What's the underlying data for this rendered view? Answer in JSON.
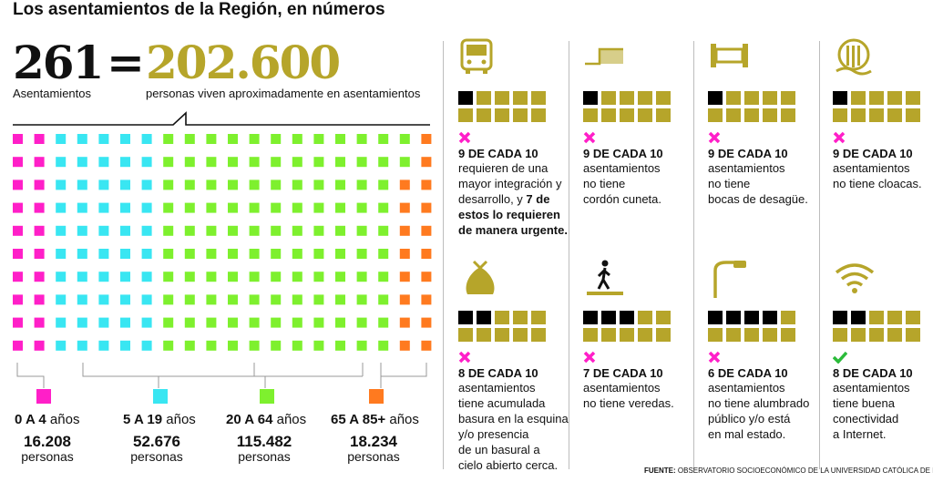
{
  "title": "Los asentamientos de la Región, en números",
  "headline": {
    "count": "261",
    "count_label": "Asentamientos",
    "equals": "=",
    "people": "202.600",
    "people_label": "personas viven aproximadamente en asentamientos"
  },
  "colors": {
    "magenta": "#ff1fc8",
    "cyan": "#39e6f2",
    "green": "#7ef02e",
    "orange": "#ff7a1f",
    "gold": "#b6a52a",
    "black": "#000000"
  },
  "age_groups": [
    {
      "range": "0 A 4",
      "unit": "años",
      "count": "16.208",
      "label": "personas",
      "color": "#ff1fc8"
    },
    {
      "range": "5 A 19",
      "unit": "años",
      "count": "52.676",
      "label": "personas",
      "color": "#39e6f2"
    },
    {
      "range": "20 A 64",
      "unit": "años",
      "count": "115.482",
      "label": "personas",
      "color": "#7ef02e"
    },
    {
      "range": "65 A 85+",
      "unit": "años",
      "count": "18.234",
      "label": "personas",
      "color": "#ff7a1f"
    }
  ],
  "stats": [
    {
      "icon": "bus-icon",
      "black": 1,
      "mark": "cross",
      "head": "9 DE CADA 10",
      "body_pre": "requieren de una\nmayor integración y\ndesarrollo, y ",
      "body_bold": "7 de\nestos lo requieren\nde manera urgente."
    },
    {
      "icon": "curb-icon",
      "black": 1,
      "mark": "cross",
      "head": "9 DE CADA 10",
      "body_pre": "asentamientos\nno tiene\ncordón cuneta.",
      "body_bold": ""
    },
    {
      "icon": "drain-icon",
      "black": 1,
      "mark": "cross",
      "head": "9 DE CADA 10",
      "body_pre": "asentamientos\nno tiene\nbocas de desagüe.",
      "body_bold": ""
    },
    {
      "icon": "sewer-icon",
      "black": 1,
      "mark": "cross",
      "head": "9 DE CADA 10",
      "body_pre": "asentamientos\nno tiene cloacas.",
      "body_bold": ""
    },
    {
      "icon": "trash-bag-icon",
      "black": 2,
      "mark": "cross",
      "head": "8 DE CADA 10",
      "body_pre": "asentamientos\ntiene acumulada\nbasura en la esquina\ny/o presencia\nde un basural a\ncielo abierto cerca.",
      "body_bold": ""
    },
    {
      "icon": "pedestrian-icon",
      "black": 3,
      "mark": "cross",
      "head": "7 DE CADA 10",
      "body_pre": "asentamientos\nno tiene veredas.",
      "body_bold": ""
    },
    {
      "icon": "streetlight-icon",
      "black": 4,
      "mark": "cross",
      "head": "6 DE CADA 10",
      "body_pre": "asentamientos\nno tiene alumbrado\npúblico y/o está\nen mal estado.",
      "body_bold": ""
    },
    {
      "icon": "wifi-icon",
      "black": 2,
      "mark": "check",
      "head": "8 DE CADA 10",
      "body_pre": "asentamientos\ntiene buena\nconectividad\na Internet.",
      "body_bold": ""
    }
  ],
  "source": {
    "label": "FUENTE:",
    "text": " OBSERVATORIO SOCIOECONÓMICO DE LA UNIVERSIDAD CATÓLICA DE LA PLATA"
  }
}
